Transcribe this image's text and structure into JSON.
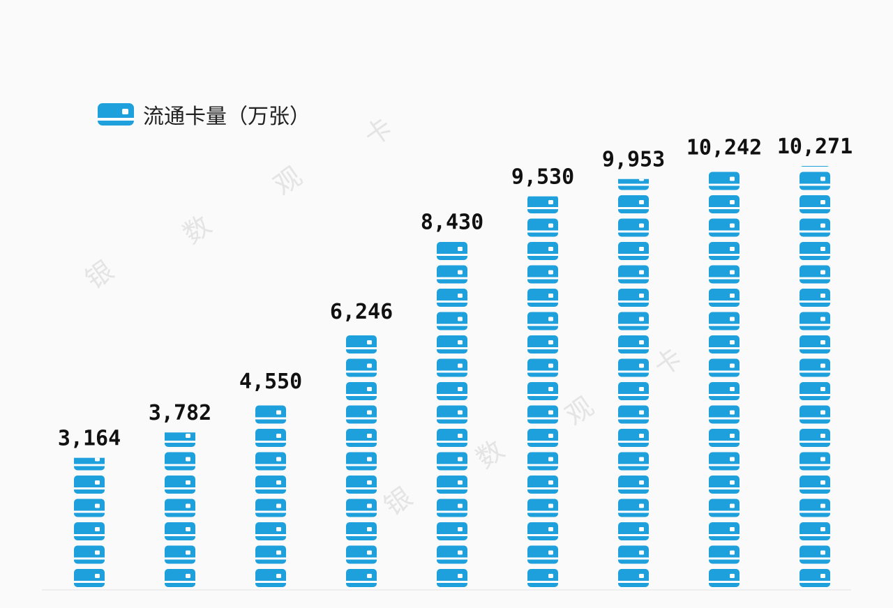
{
  "legend": {
    "label": "流通卡量（万张）",
    "icon": "bank-card-icon"
  },
  "watermark": {
    "chars": [
      "银",
      "数",
      "观",
      "卡"
    ]
  },
  "colors": {
    "card_blue": "#1ea0dc",
    "card_stripe": "#ffffff",
    "label_text": "#111111",
    "baseline": "#eeeeee"
  },
  "chart_data": {
    "type": "bar",
    "title": "",
    "series": [
      {
        "name": "流通卡量（万张）",
        "values": [
          3164,
          3782,
          4550,
          6246,
          8430,
          9530,
          9953,
          10242,
          10271
        ],
        "labels": [
          "3,164",
          "3,782",
          "4,550",
          "6,246",
          "8,430",
          "9,530",
          "9,953",
          "10,242",
          "10,271"
        ]
      }
    ],
    "ylim": [
      0,
      10271
    ],
    "grid": false,
    "legend_position": "top-left",
    "mark_style": "stacked-card-icons"
  }
}
